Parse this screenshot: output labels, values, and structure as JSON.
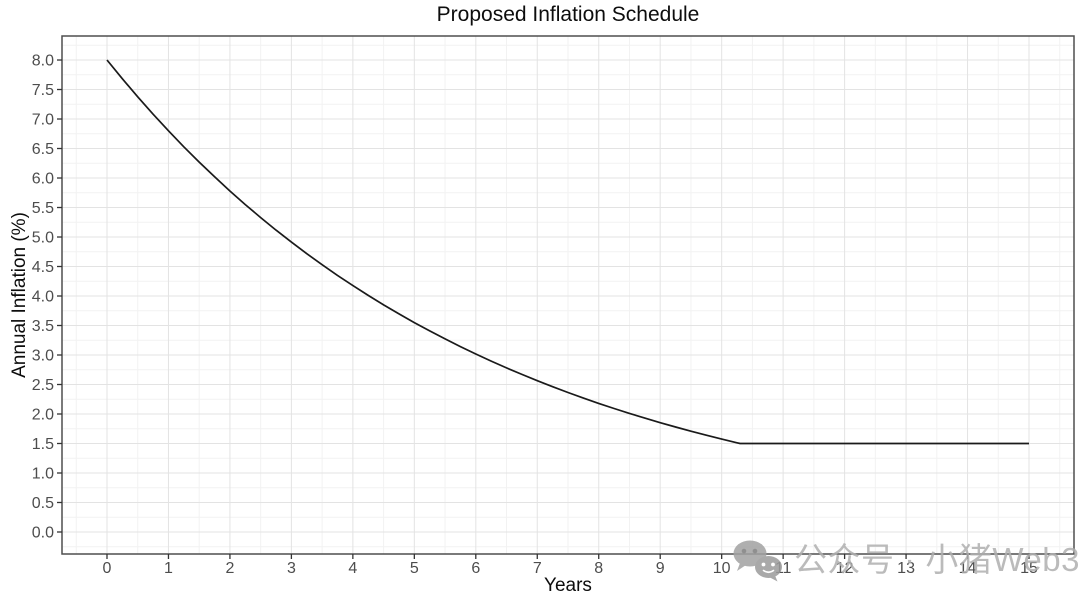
{
  "figure": {
    "title": "Proposed Inflation Schedule",
    "xlabel": "Years",
    "ylabel": "Annual Inflation (%)"
  },
  "watermark": {
    "icon": "wechat-icon",
    "text": "公众号 · 小猪Web3"
  },
  "colors": {
    "background": "#ffffff",
    "line": "#1a1a1a",
    "grid_major": "#e3e3e3",
    "grid_minor": "#f2f2f2",
    "panel_border": "#4e4e4e",
    "tick": "#333333",
    "tick_label": "#4d4d4d",
    "watermark_gray": "#a2a2a2"
  },
  "chart_data": {
    "type": "line",
    "title": "Proposed Inflation Schedule",
    "xlabel": "Years",
    "ylabel": "Annual Inflation (%)",
    "legend": "none",
    "grid": "major-and-minor",
    "xlim": [
      -0.732,
      15.732
    ],
    "ylim": [
      -0.373,
      8.407
    ],
    "x_ticks": [
      0,
      1,
      2,
      3,
      4,
      5,
      6,
      7,
      8,
      9,
      10,
      11,
      12,
      13,
      14,
      15
    ],
    "x_tick_labels": [
      "0",
      "1",
      "2",
      "3",
      "4",
      "5",
      "6",
      "7",
      "8",
      "9",
      "10",
      "11",
      "12",
      "13",
      "14",
      "15"
    ],
    "y_ticks": [
      8.0,
      7.5,
      7.0,
      6.5,
      6.0,
      5.5,
      5.0,
      4.5,
      4.0,
      3.5,
      3.0,
      2.5,
      2.0,
      1.5,
      1.0,
      0.5,
      0.0
    ],
    "y_tick_labels": [
      "8.0",
      "7.5",
      "7.0",
      "6.5",
      "6.0",
      "5.5",
      "5.0",
      "4.5",
      "4.0",
      "3.5",
      "3.0",
      "2.5",
      "2.0",
      "1.5",
      "1.0",
      "0.5",
      "0.0"
    ],
    "series": [
      {
        "name": "Annual Inflation (%)",
        "description": "8% initial inflation decaying ~15%/yr to a 1.5% floor reached near year 10.3",
        "x": [
          0,
          0.25,
          0.5,
          0.75,
          1,
          1.25,
          1.5,
          1.75,
          2,
          2.25,
          2.5,
          2.75,
          3,
          3.25,
          3.5,
          3.75,
          4,
          4.25,
          4.5,
          4.75,
          5,
          5.25,
          5.5,
          5.75,
          6,
          6.25,
          6.5,
          6.75,
          7,
          7.25,
          7.5,
          7.75,
          8,
          8.25,
          8.5,
          8.75,
          9,
          9.25,
          9.5,
          9.75,
          10,
          10.25,
          10.3,
          11,
          12,
          13,
          14,
          15
        ],
        "y": [
          8.0,
          7.681,
          7.376,
          7.082,
          6.8,
          6.529,
          6.269,
          6.02,
          5.78,
          5.55,
          5.329,
          5.117,
          4.913,
          4.717,
          4.53,
          4.349,
          4.176,
          4.01,
          3.85,
          3.697,
          3.55,
          3.408,
          3.273,
          3.142,
          3.017,
          2.897,
          2.782,
          2.671,
          2.565,
          2.462,
          2.365,
          2.27,
          2.18,
          2.093,
          2.01,
          1.93,
          1.853,
          1.779,
          1.708,
          1.64,
          1.575,
          1.512,
          1.5,
          1.5,
          1.5,
          1.5,
          1.5,
          1.5
        ]
      }
    ]
  }
}
